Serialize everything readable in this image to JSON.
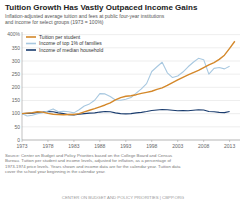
{
  "chart_data": {
    "type": "line",
    "title": "Tuition Growth Has Vastly Outpaced Income Gains",
    "subtitle": "Inflation-adjusted average tuition and fees at public four-year institutions\nand income for select groups (1973 = 100%)",
    "annotations": [
      "Source: Center on Budget and Policy Priorities based on the College Board and Census\nBureau. Tuition per student and income levels, adjusted for inflation, as a percentage of\n1973-1974 price levels. Years shown and income data are for the calendar year. Tuition data\ncover the school year beginning in the calendar year.",
      "CENTER ON BUDGET AND POLICY PRIORITIES | CBPP.ORG"
    ],
    "x": [
      1973,
      1974,
      1975,
      1976,
      1977,
      1978,
      1979,
      1980,
      1981,
      1982,
      1983,
      1984,
      1985,
      1986,
      1987,
      1988,
      1989,
      1990,
      1991,
      1992,
      1993,
      1994,
      1995,
      1996,
      1997,
      1998,
      1999,
      2000,
      2001,
      2002,
      2003,
      2004,
      2005,
      2006,
      2007,
      2008,
      2009,
      2010,
      2011,
      2012,
      2013,
      2014
    ],
    "series": [
      {
        "name": "Tuition per student",
        "color": "#d4882a",
        "values": [
          100,
          102,
          104,
          107,
          106,
          101,
          98,
          97,
          96,
          97,
          97,
          100,
          107,
          113,
          119,
          126,
          133,
          141,
          152,
          161,
          166,
          168,
          172,
          177,
          181,
          185,
          192,
          198,
          207,
          218,
          228,
          238,
          247,
          256,
          264,
          275,
          285,
          294,
          306,
          322,
          348,
          375
        ]
      },
      {
        "name": "Income of top 1% of families",
        "color": "#a8c8e0",
        "values": [
          100,
          91,
          94,
          100,
          104,
          110,
          118,
          107,
          109,
          107,
          103,
          115,
          129,
          137,
          151,
          176,
          175,
          165,
          152,
          151,
          155,
          161,
          178,
          194,
          214,
          260,
          278,
          295,
          255,
          237,
          243,
          258,
          278,
          295,
          310,
          305,
          250,
          272,
          275,
          270,
          280,
          null
        ]
      },
      {
        "name": "Income of median household",
        "color": "#1a3c6e",
        "values": [
          100,
          101,
          102,
          105,
          106,
          108,
          107,
          103,
          100,
          96,
          95,
          98,
          100,
          102,
          103,
          106,
          108,
          107,
          103,
          100,
          99,
          100,
          103,
          105,
          108,
          112,
          114,
          116,
          115,
          113,
          111,
          112,
          111,
          113,
          115,
          114,
          108,
          107,
          105,
          104,
          108,
          null
        ]
      }
    ],
    "xlim": [
      1973,
      2015
    ],
    "ylim": [
      0,
      410
    ],
    "xticks": [
      1973,
      1978,
      1983,
      1988,
      1993,
      1998,
      2003,
      2008,
      2013
    ],
    "yticks": [
      0,
      50,
      100,
      150,
      200,
      250,
      300,
      350,
      {
        "value": 400,
        "label": "400%"
      }
    ],
    "grid": true,
    "legend": "upper left"
  }
}
